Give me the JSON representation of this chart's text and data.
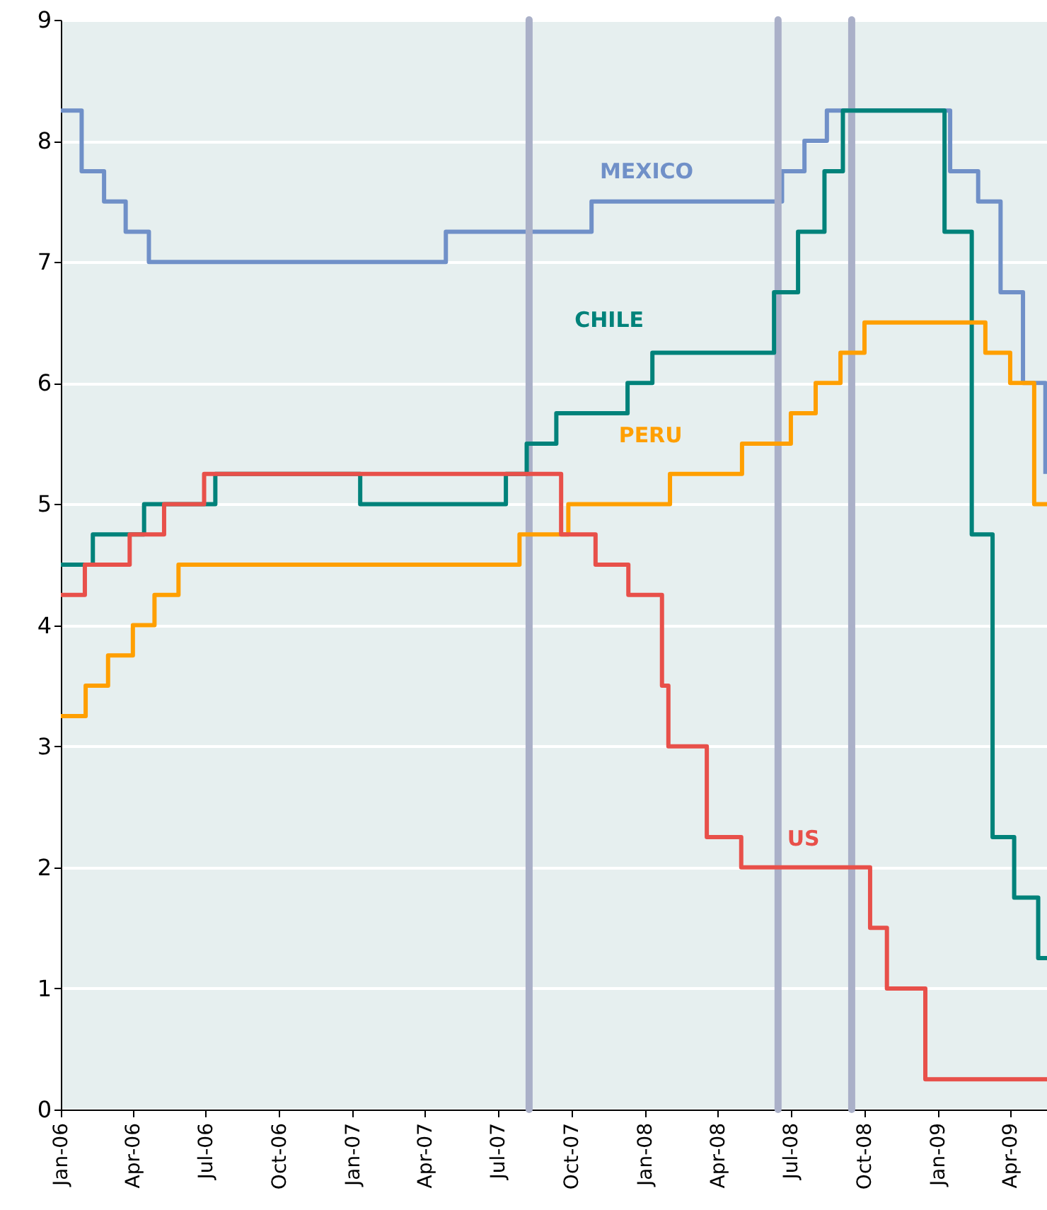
{
  "chart_data": {
    "type": "step",
    "xlim": [
      "2006-01-01",
      "2009-05-17"
    ],
    "xticks": [
      {
        "value": "2006-01-01",
        "label": "Jan-06"
      },
      {
        "value": "2006-04-01",
        "label": "Apr-06"
      },
      {
        "value": "2006-07-01",
        "label": "Jul-06"
      },
      {
        "value": "2006-10-01",
        "label": "Oct-06"
      },
      {
        "value": "2007-01-01",
        "label": "Jan-07"
      },
      {
        "value": "2007-04-01",
        "label": "Apr-07"
      },
      {
        "value": "2007-07-01",
        "label": "Jul-07"
      },
      {
        "value": "2007-10-01",
        "label": "Oct-07"
      },
      {
        "value": "2008-01-01",
        "label": "Jan-08"
      },
      {
        "value": "2008-04-01",
        "label": "Apr-08"
      },
      {
        "value": "2008-07-01",
        "label": "Jul-08"
      },
      {
        "value": "2008-10-01",
        "label": "Oct-08"
      },
      {
        "value": "2009-01-01",
        "label": "Jan-09"
      },
      {
        "value": "2009-04-01",
        "label": "Apr-09"
      }
    ],
    "ylim": [
      0,
      9
    ],
    "yticks": [
      0,
      1,
      2,
      3,
      4,
      5,
      6,
      7,
      8,
      9
    ],
    "grid": "y",
    "series": [
      {
        "name": "MEXICO",
        "color": "#7090c8",
        "x": [
          "2006-01-01",
          "2006-01-27",
          "2006-02-24",
          "2006-03-23",
          "2006-04-21",
          "2007-04-27",
          "2007-10-26",
          "2008-06-20",
          "2008-07-18",
          "2008-08-15",
          "2009-01-16",
          "2009-02-20",
          "2009-03-20",
          "2009-04-17",
          "2009-05-15"
        ],
        "values": [
          8.25,
          7.75,
          7.5,
          7.25,
          7.0,
          7.25,
          7.5,
          7.75,
          8.0,
          8.25,
          7.75,
          7.5,
          6.75,
          6.0,
          5.25
        ]
      },
      {
        "name": "CHILE",
        "color": "#00827a",
        "x": [
          "2006-01-01",
          "2006-02-10",
          "2006-04-15",
          "2006-07-13",
          "2007-01-10",
          "2007-07-11",
          "2007-08-06",
          "2007-09-12",
          "2007-12-10",
          "2008-01-10",
          "2008-06-10",
          "2008-07-10",
          "2008-08-12",
          "2008-09-04",
          "2009-01-09",
          "2009-02-12",
          "2009-03-10",
          "2009-04-06",
          "2009-05-06",
          "2009-05-17"
        ],
        "values": [
          4.5,
          4.75,
          5.0,
          5.25,
          5.0,
          5.25,
          5.5,
          5.75,
          6.0,
          6.25,
          6.75,
          7.25,
          7.75,
          8.25,
          7.25,
          4.75,
          2.25,
          1.75,
          1.25,
          1.25
        ]
      },
      {
        "name": "PERU",
        "color": "#ff9f00",
        "x": [
          "2006-01-01",
          "2006-02-01",
          "2006-03-01",
          "2006-04-01",
          "2006-04-28",
          "2006-05-28",
          "2007-07-28",
          "2007-09-27",
          "2008-02-01",
          "2008-05-01",
          "2008-07-01",
          "2008-08-01",
          "2008-09-01",
          "2008-10-01",
          "2009-03-01",
          "2009-04-01",
          "2009-05-01",
          "2009-05-17"
        ],
        "values": [
          3.25,
          3.5,
          3.75,
          4.0,
          4.25,
          4.5,
          4.75,
          5.0,
          5.25,
          5.5,
          5.75,
          6.0,
          6.25,
          6.5,
          6.25,
          6.0,
          5.0,
          5.0
        ]
      },
      {
        "name": "US",
        "color": "#e8504a",
        "x": [
          "2006-01-01",
          "2006-01-31",
          "2006-03-28",
          "2006-05-10",
          "2006-06-29",
          "2007-09-18",
          "2007-10-31",
          "2007-12-11",
          "2008-01-22",
          "2008-01-30",
          "2008-03-18",
          "2008-04-30",
          "2008-10-08",
          "2008-10-29",
          "2008-12-16",
          "2009-05-17"
        ],
        "values": [
          4.25,
          4.5,
          4.75,
          5.0,
          5.25,
          4.75,
          4.5,
          4.25,
          3.5,
          3.0,
          2.25,
          2.0,
          1.5,
          1.0,
          0.25,
          0.25
        ]
      }
    ],
    "ref_lines": [
      {
        "axis": "x",
        "value": "2007-08-09",
        "color": "#aab0c8"
      },
      {
        "axis": "x",
        "value": "2008-06-15",
        "color": "#aab0c8"
      },
      {
        "axis": "x",
        "value": "2008-09-15",
        "color": "#aab0c8"
      }
    ]
  }
}
